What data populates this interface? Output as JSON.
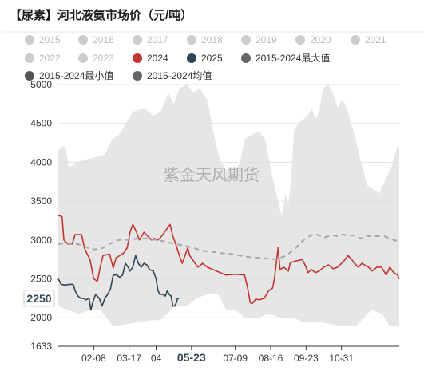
{
  "chart_data": {
    "type": "line",
    "title": "【尿素】河北液氨市场价（元/吨）",
    "watermark": "紫金天风期货",
    "y_ticks": [
      {
        "value": 1633,
        "label": "1633"
      },
      {
        "value": 2000,
        "label": "2000"
      },
      {
        "value": 2500,
        "label": "2500"
      },
      {
        "value": 3000,
        "label": "3000"
      },
      {
        "value": 3500,
        "label": "3500"
      },
      {
        "value": 4000,
        "label": "4000"
      },
      {
        "value": 4500,
        "label": "4500"
      },
      {
        "value": 5000,
        "label": "5000"
      }
    ],
    "ylim": [
      1633,
      5000
    ],
    "x_domain": [
      0,
      366
    ],
    "x_ticks": [
      {
        "day": 38,
        "label": "02-08"
      },
      {
        "day": 76,
        "label": "03-17"
      },
      {
        "day": 105,
        "label": "04"
      },
      {
        "day": 143,
        "label": "05-23",
        "highlight": true
      },
      {
        "day": 190,
        "label": "07-09"
      },
      {
        "day": 228,
        "label": "08-16"
      },
      {
        "day": 266,
        "label": "09-23"
      },
      {
        "day": 304,
        "label": "10-31"
      }
    ],
    "highlight_value": {
      "value": 2250,
      "label": "2250"
    },
    "legend": [
      {
        "label": "2015",
        "color": "#cccccc",
        "active": false
      },
      {
        "label": "2016",
        "color": "#cccccc",
        "active": false
      },
      {
        "label": "2017",
        "color": "#cccccc",
        "active": false
      },
      {
        "label": "2018",
        "color": "#cccccc",
        "active": false
      },
      {
        "label": "2019",
        "color": "#cccccc",
        "active": false
      },
      {
        "label": "2020",
        "color": "#cccccc",
        "active": false
      },
      {
        "label": "2021",
        "color": "#cccccc",
        "active": false
      },
      {
        "label": "2022",
        "color": "#cccccc",
        "active": false
      },
      {
        "label": "2023",
        "color": "#cccccc",
        "active": false
      },
      {
        "label": "2024",
        "color": "#c23531",
        "active": true
      },
      {
        "label": "2025",
        "color": "#2f4554",
        "active": true
      },
      {
        "label": "2015-2024最大值",
        "color": "#666666",
        "active": true
      },
      {
        "label": "2015-2024最小值",
        "color": "#555555",
        "active": true
      },
      {
        "label": "2015-2024均值",
        "color": "#666666",
        "active": true
      }
    ],
    "colors": {
      "band": "#e6e6e6",
      "s2024": "#c23531",
      "s2025": "#2f4554",
      "avg": "#a6a6a6",
      "axis": "#333333"
    },
    "band_max": [
      [
        0,
        4150
      ],
      [
        3,
        4200
      ],
      [
        8,
        4200
      ],
      [
        9,
        4100
      ],
      [
        11,
        3950
      ],
      [
        14,
        3950
      ],
      [
        20,
        4000
      ],
      [
        35,
        4050
      ],
      [
        50,
        4100
      ],
      [
        58,
        4300
      ],
      [
        65,
        4350
      ],
      [
        70,
        4450
      ],
      [
        80,
        4650
      ],
      [
        92,
        4700
      ],
      [
        102,
        4600
      ],
      [
        110,
        4650
      ],
      [
        118,
        4900
      ],
      [
        124,
        4750
      ],
      [
        130,
        4950
      ],
      [
        138,
        5000
      ],
      [
        145,
        4900
      ],
      [
        152,
        4950
      ],
      [
        160,
        4800
      ],
      [
        167,
        4350
      ],
      [
        173,
        4050
      ],
      [
        180,
        3900
      ],
      [
        190,
        3900
      ],
      [
        195,
        4000
      ],
      [
        200,
        4300
      ],
      [
        207,
        4350
      ],
      [
        215,
        4400
      ],
      [
        222,
        4300
      ],
      [
        230,
        3800
      ],
      [
        236,
        3500
      ],
      [
        240,
        3300
      ],
      [
        244,
        3600
      ],
      [
        247,
        3450
      ],
      [
        250,
        3800
      ],
      [
        253,
        4400
      ],
      [
        258,
        4500
      ],
      [
        263,
        4550
      ],
      [
        268,
        4600
      ],
      [
        272,
        4700
      ],
      [
        276,
        4550
      ],
      [
        280,
        4650
      ],
      [
        284,
        4950
      ],
      [
        290,
        5000
      ],
      [
        296,
        4850
      ],
      [
        300,
        4700
      ],
      [
        304,
        4800
      ],
      [
        308,
        4750
      ],
      [
        312,
        4600
      ],
      [
        318,
        4350
      ],
      [
        325,
        4000
      ],
      [
        332,
        3700
      ],
      [
        338,
        3650
      ],
      [
        345,
        3600
      ],
      [
        352,
        3800
      ],
      [
        358,
        3950
      ],
      [
        364,
        4200
      ],
      [
        366,
        4200
      ]
    ],
    "band_min": [
      [
        0,
        2150
      ],
      [
        10,
        2100
      ],
      [
        22,
        2050
      ],
      [
        35,
        2100
      ],
      [
        45,
        2100
      ],
      [
        58,
        1900
      ],
      [
        65,
        1900
      ],
      [
        75,
        1920
      ],
      [
        88,
        1950
      ],
      [
        100,
        1970
      ],
      [
        110,
        1970
      ],
      [
        125,
        2150
      ],
      [
        138,
        2150
      ],
      [
        148,
        2250
      ],
      [
        160,
        2300
      ],
      [
        172,
        2300
      ],
      [
        180,
        2100
      ],
      [
        190,
        2100
      ],
      [
        200,
        2000
      ],
      [
        215,
        2000
      ],
      [
        225,
        2050
      ],
      [
        240,
        2000
      ],
      [
        252,
        2000
      ],
      [
        262,
        1950
      ],
      [
        280,
        1950
      ],
      [
        300,
        1900
      ],
      [
        320,
        1900
      ],
      [
        336,
        2100
      ],
      [
        348,
        2050
      ],
      [
        355,
        1900
      ],
      [
        366,
        1900
      ]
    ],
    "series": [
      {
        "name": "2024",
        "color": "#c23531",
        "points": [
          [
            0,
            3320
          ],
          [
            4,
            3300
          ],
          [
            6,
            3000
          ],
          [
            10,
            2950
          ],
          [
            15,
            2950
          ],
          [
            18,
            3070
          ],
          [
            25,
            3070
          ],
          [
            28,
            2900
          ],
          [
            31,
            2820
          ],
          [
            34,
            2750
          ],
          [
            38,
            2500
          ],
          [
            42,
            2470
          ],
          [
            45,
            2650
          ],
          [
            48,
            2800
          ],
          [
            55,
            2820
          ],
          [
            59,
            2640
          ],
          [
            62,
            2770
          ],
          [
            66,
            2800
          ],
          [
            70,
            2830
          ],
          [
            74,
            2900
          ],
          [
            77,
            3100
          ],
          [
            80,
            3200
          ],
          [
            84,
            3100
          ],
          [
            87,
            3000
          ],
          [
            92,
            3100
          ],
          [
            96,
            3050
          ],
          [
            100,
            3000
          ],
          [
            103,
            3020
          ],
          [
            107,
            3000
          ],
          [
            111,
            3050
          ],
          [
            114,
            3100
          ],
          [
            117,
            3150
          ],
          [
            120,
            3200
          ],
          [
            123,
            3050
          ],
          [
            126,
            2950
          ],
          [
            130,
            2800
          ],
          [
            133,
            2700
          ],
          [
            136,
            2800
          ],
          [
            139,
            2900
          ],
          [
            141,
            2800
          ],
          [
            144,
            2750
          ],
          [
            147,
            2700
          ],
          [
            150,
            2650
          ],
          [
            155,
            2700
          ],
          [
            160,
            2650
          ],
          [
            170,
            2600
          ],
          [
            180,
            2550
          ],
          [
            190,
            2560
          ],
          [
            200,
            2550
          ],
          [
            203,
            2400
          ],
          [
            206,
            2200
          ],
          [
            208,
            2180
          ],
          [
            212,
            2240
          ],
          [
            216,
            2230
          ],
          [
            221,
            2250
          ],
          [
            226,
            2350
          ],
          [
            230,
            2380
          ],
          [
            232,
            2500
          ],
          [
            234,
            2700
          ],
          [
            236,
            2900
          ],
          [
            238,
            2620
          ],
          [
            242,
            2650
          ],
          [
            247,
            2600
          ],
          [
            249,
            2710
          ],
          [
            255,
            2730
          ],
          [
            262,
            2750
          ],
          [
            266,
            2650
          ],
          [
            268,
            2580
          ],
          [
            272,
            2620
          ],
          [
            276,
            2580
          ],
          [
            280,
            2600
          ],
          [
            285,
            2650
          ],
          [
            290,
            2680
          ],
          [
            295,
            2630
          ],
          [
            300,
            2650
          ],
          [
            304,
            2700
          ],
          [
            308,
            2750
          ],
          [
            311,
            2800
          ],
          [
            315,
            2750
          ],
          [
            318,
            2700
          ],
          [
            322,
            2650
          ],
          [
            326,
            2700
          ],
          [
            333,
            2650
          ],
          [
            337,
            2600
          ],
          [
            342,
            2650
          ],
          [
            347,
            2650
          ],
          [
            352,
            2550
          ],
          [
            356,
            2650
          ],
          [
            360,
            2580
          ],
          [
            364,
            2550
          ],
          [
            366,
            2500
          ]
        ]
      },
      {
        "name": "2025",
        "color": "#2f4554",
        "points": [
          [
            0,
            2500
          ],
          [
            3,
            2430
          ],
          [
            8,
            2420
          ],
          [
            12,
            2430
          ],
          [
            16,
            2430
          ],
          [
            18,
            2350
          ],
          [
            21,
            2280
          ],
          [
            24,
            2250
          ],
          [
            27,
            2250
          ],
          [
            30,
            2230
          ],
          [
            33,
            2250
          ],
          [
            35,
            2100
          ],
          [
            37,
            2200
          ],
          [
            40,
            2300
          ],
          [
            44,
            2250
          ],
          [
            47,
            2150
          ],
          [
            50,
            2250
          ],
          [
            53,
            2300
          ],
          [
            56,
            2370
          ],
          [
            59,
            2550
          ],
          [
            63,
            2550
          ],
          [
            66,
            2520
          ],
          [
            69,
            2550
          ],
          [
            72,
            2700
          ],
          [
            75,
            2650
          ],
          [
            77,
            2600
          ],
          [
            80,
            2650
          ],
          [
            83,
            2800
          ],
          [
            86,
            2700
          ],
          [
            89,
            2650
          ],
          [
            92,
            2700
          ],
          [
            95,
            2680
          ],
          [
            98,
            2620
          ],
          [
            102,
            2600
          ],
          [
            105,
            2500
          ],
          [
            107,
            2350
          ],
          [
            109,
            2300
          ],
          [
            112,
            2300
          ],
          [
            115,
            2280
          ],
          [
            117,
            2350
          ],
          [
            119,
            2300
          ],
          [
            121,
            2280
          ],
          [
            123,
            2150
          ],
          [
            125,
            2150
          ],
          [
            127,
            2200
          ],
          [
            128,
            2250
          ],
          [
            130,
            2250
          ]
        ]
      },
      {
        "name": "2015-2024均值",
        "color": "#a6a6a6",
        "dashed": true,
        "points": [
          [
            0,
            2950
          ],
          [
            10,
            2960
          ],
          [
            20,
            2950
          ],
          [
            28,
            2920
          ],
          [
            35,
            2880
          ],
          [
            45,
            2880
          ],
          [
            55,
            2950
          ],
          [
            65,
            3000
          ],
          [
            75,
            3000
          ],
          [
            85,
            3020
          ],
          [
            95,
            3020
          ],
          [
            105,
            3000
          ],
          [
            115,
            2980
          ],
          [
            125,
            2950
          ],
          [
            135,
            2930
          ],
          [
            145,
            2900
          ],
          [
            155,
            2860
          ],
          [
            165,
            2850
          ],
          [
            175,
            2830
          ],
          [
            185,
            2820
          ],
          [
            195,
            2800
          ],
          [
            205,
            2780
          ],
          [
            215,
            2770
          ],
          [
            225,
            2760
          ],
          [
            235,
            2750
          ],
          [
            240,
            2780
          ],
          [
            245,
            2800
          ],
          [
            250,
            2850
          ],
          [
            255,
            2900
          ],
          [
            260,
            2960
          ],
          [
            265,
            3020
          ],
          [
            270,
            3050
          ],
          [
            275,
            3080
          ],
          [
            280,
            3060
          ],
          [
            285,
            3030
          ],
          [
            290,
            3050
          ],
          [
            295,
            3060
          ],
          [
            300,
            3050
          ],
          [
            305,
            3070
          ],
          [
            310,
            3060
          ],
          [
            318,
            3060
          ],
          [
            325,
            3020
          ],
          [
            330,
            3050
          ],
          [
            340,
            3050
          ],
          [
            350,
            3050
          ],
          [
            360,
            3000
          ],
          [
            366,
            2980
          ]
        ]
      }
    ]
  }
}
